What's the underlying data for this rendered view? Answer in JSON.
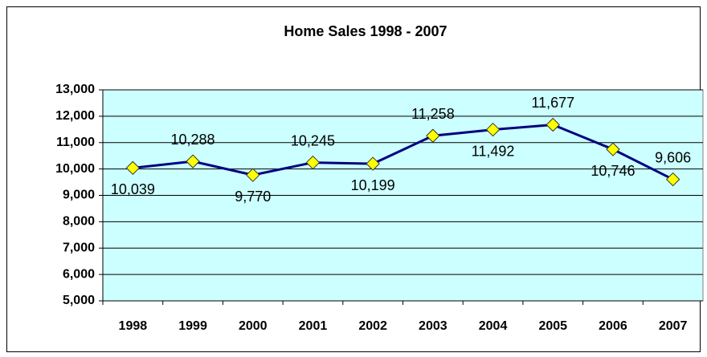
{
  "chart_data": {
    "type": "line",
    "title": "Home Sales 1998 - 2007",
    "categories": [
      "1998",
      "1999",
      "2000",
      "2001",
      "2002",
      "2003",
      "2004",
      "2005",
      "2006",
      "2007"
    ],
    "series": [
      {
        "name": "Home Sales",
        "color": "#000080",
        "marker_color": "#ffff00",
        "values": [
          10039,
          10288,
          9770,
          10245,
          10199,
          11258,
          11492,
          11677,
          10746,
          9606
        ],
        "value_labels": [
          "10,039",
          "10,288",
          "9,770",
          "10,245",
          "10,199",
          "11,258",
          "11,492",
          "11,677",
          "10,746",
          "9,606"
        ]
      }
    ],
    "ylim": [
      5000,
      13000
    ],
    "yticks": [
      {
        "value": 5000,
        "label": "5,000"
      },
      {
        "value": 6000,
        "label": "6,000"
      },
      {
        "value": 7000,
        "label": "7,000"
      },
      {
        "value": 8000,
        "label": "8,000"
      },
      {
        "value": 9000,
        "label": "9,000"
      },
      {
        "value": 10000,
        "label": "10,000"
      },
      {
        "value": 11000,
        "label": "11,000"
      },
      {
        "value": 12000,
        "label": "12,000"
      },
      {
        "value": 13000,
        "label": "13,000"
      }
    ],
    "grid": true,
    "plot_background": "#ccffff"
  }
}
